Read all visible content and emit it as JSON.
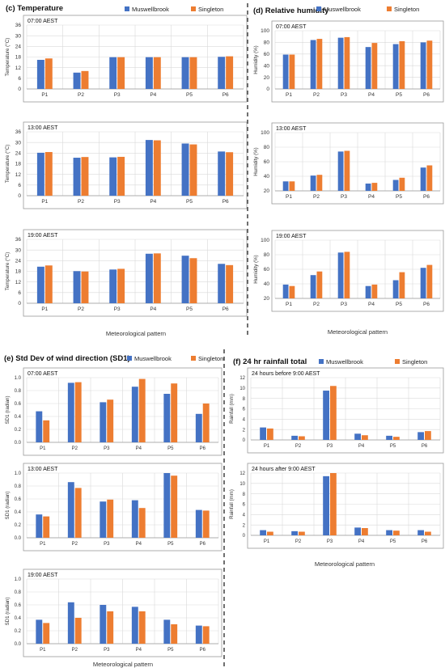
{
  "colors": {
    "muswellbrook": "#4472C4",
    "singleton": "#ED7D31"
  },
  "categories": [
    "P1",
    "P2",
    "P3",
    "P4",
    "P5",
    "P6"
  ],
  "panels": [
    {
      "id": "c",
      "title": "(c) Temperature",
      "legend": [
        "Muswellbrook",
        "Singleton"
      ],
      "xlabel": "Meteorological pattern",
      "charts": [
        {
          "label": "07:00 AEST",
          "ylabel": "Temperature (°C)",
          "ylim": [
            0,
            36
          ],
          "ticks": [
            0,
            6,
            12,
            18,
            24,
            30,
            36
          ],
          "tick_labels": [
            "0",
            "6",
            "12",
            "18",
            "24",
            "30",
            "36"
          ],
          "series": [
            {
              "name": "Muswellbrook",
              "values": [
                16.4,
                9.2,
                17.9,
                17.9,
                17.9,
                18.1
              ]
            },
            {
              "name": "Singleton",
              "values": [
                17.2,
                10.1,
                17.9,
                17.9,
                17.9,
                18.4
              ]
            }
          ]
        },
        {
          "label": "13:00 AEST",
          "ylabel": "Temperature (°C)",
          "ylim": [
            0,
            36
          ],
          "ticks": [
            0,
            6,
            12,
            18,
            24,
            30,
            36
          ],
          "tick_labels": [
            "0",
            "6",
            "12",
            "18",
            "24",
            "30",
            "36"
          ],
          "series": [
            {
              "name": "Muswellbrook",
              "values": [
                24.2,
                21.4,
                21.6,
                31.4,
                29.4,
                24.9
              ]
            },
            {
              "name": "Singleton",
              "values": [
                24.6,
                21.8,
                21.9,
                31.2,
                28.9,
                24.5
              ]
            }
          ]
        },
        {
          "label": "19:00 AEST",
          "ylabel": "Temperature (°C)",
          "ylim": [
            0,
            36
          ],
          "ticks": [
            0,
            6,
            12,
            18,
            24,
            30,
            36
          ],
          "tick_labels": [
            "0",
            "6",
            "12",
            "18",
            "24",
            "30",
            "36"
          ],
          "series": [
            {
              "name": "Muswellbrook",
              "values": [
                20.6,
                18.1,
                19.0,
                27.9,
                26.8,
                22.2
              ]
            },
            {
              "name": "Singleton",
              "values": [
                21.3,
                17.9,
                19.4,
                28.1,
                25.4,
                21.5
              ]
            }
          ]
        }
      ]
    },
    {
      "id": "d",
      "title": "(d) Relative humidity",
      "legend": [
        "Muswellbrook",
        "Singleton"
      ],
      "xlabel": "Meteorological pattern",
      "charts": [
        {
          "label": "07:00 AEST",
          "ylabel": "Humidity (%)",
          "ylim": [
            0,
            100
          ],
          "ticks": [
            0,
            20,
            40,
            60,
            80,
            100
          ],
          "tick_labels": [
            "0",
            "20",
            "40",
            "60",
            "80",
            "100"
          ],
          "series": [
            {
              "name": "Muswellbrook",
              "values": [
                59,
                84,
                88,
                72,
                77,
                80
              ]
            },
            {
              "name": "Singleton",
              "values": [
                59,
                86,
                89,
                79,
                82,
                83
              ]
            }
          ]
        },
        {
          "label": "13:00 AEST",
          "ylabel": "Humidity (%)",
          "ylim": [
            20,
            100
          ],
          "ticks": [
            20,
            40,
            60,
            80,
            100
          ],
          "tick_labels": [
            "20",
            "40",
            "60",
            "80",
            "100"
          ],
          "series": [
            {
              "name": "Muswellbrook",
              "values": [
                33,
                41,
                74,
                30,
                35,
                52
              ]
            },
            {
              "name": "Singleton",
              "values": [
                33,
                42,
                75,
                31,
                38,
                55
              ]
            }
          ]
        },
        {
          "label": "19:00 AEST",
          "ylabel": "Humidity (%)",
          "ylim": [
            20,
            100
          ],
          "ticks": [
            20,
            40,
            60,
            80,
            100
          ],
          "tick_labels": [
            "20",
            "40",
            "60",
            "80",
            "100"
          ],
          "series": [
            {
              "name": "Muswellbrook",
              "values": [
                39,
                52,
                83,
                37,
                45,
                62
              ]
            },
            {
              "name": "Singleton",
              "values": [
                37,
                57,
                84,
                39,
                56,
                66
              ]
            }
          ]
        }
      ]
    },
    {
      "id": "e",
      "title": "(e) Std Dev of wind direction (SD1)",
      "legend": [
        "Muswellbrook",
        "Singleton"
      ],
      "xlabel": "Meteorological pattern",
      "charts": [
        {
          "label": "07:00 AEST",
          "ylabel": "SD1 (radian)",
          "ylim": [
            0,
            1.0
          ],
          "ticks": [
            0,
            0.2,
            0.4,
            0.6,
            0.8,
            1.0
          ],
          "tick_labels": [
            "0.0",
            "0.2",
            "0.4",
            "0.6",
            "0.8",
            "1.0"
          ],
          "series": [
            {
              "name": "Muswellbrook",
              "values": [
                0.48,
                0.92,
                0.62,
                0.86,
                0.75,
                0.44
              ]
            },
            {
              "name": "Singleton",
              "values": [
                0.34,
                0.93,
                0.66,
                0.98,
                0.91,
                0.6
              ]
            }
          ]
        },
        {
          "label": "13:00 AEST",
          "ylabel": "SD1 (radian)",
          "ylim": [
            0,
            1.0
          ],
          "ticks": [
            0,
            0.2,
            0.4,
            0.6,
            0.8,
            1.0
          ],
          "tick_labels": [
            "0.0",
            "0.2",
            "0.4",
            "0.6",
            "0.8",
            "1.0"
          ],
          "series": [
            {
              "name": "Muswellbrook",
              "values": [
                0.36,
                0.86,
                0.56,
                0.58,
                1.0,
                0.43
              ]
            },
            {
              "name": "Singleton",
              "values": [
                0.33,
                0.77,
                0.59,
                0.46,
                0.96,
                0.42
              ]
            }
          ]
        },
        {
          "label": "19:00 AEST",
          "ylabel": "SD1 (radian)",
          "ylim": [
            0,
            1.0
          ],
          "ticks": [
            0,
            0.2,
            0.4,
            0.6,
            0.8,
            1.0
          ],
          "tick_labels": [
            "0.0",
            "0.2",
            "0.4",
            "0.6",
            "0.8",
            "1.0"
          ],
          "series": [
            {
              "name": "Muswellbrook",
              "values": [
                0.37,
                0.64,
                0.6,
                0.57,
                0.37,
                0.28
              ]
            },
            {
              "name": "Singleton",
              "values": [
                0.32,
                0.4,
                0.5,
                0.5,
                0.3,
                0.27
              ]
            }
          ]
        }
      ]
    },
    {
      "id": "f",
      "title": "(f) 24 hr rainfall  total",
      "legend": [
        "Muswellbrook",
        "Singleton"
      ],
      "xlabel": "Meteorological pattern",
      "charts": [
        {
          "label": "24 hours before 9:00 AEST",
          "ylabel": "Rainfall (mm)",
          "ylim": [
            0,
            12
          ],
          "ticks": [
            0,
            2,
            4,
            6,
            8,
            10,
            12
          ],
          "tick_labels": [
            "0",
            "2",
            "4",
            "6",
            "8",
            "10",
            "12"
          ],
          "series": [
            {
              "name": "Muswellbrook",
              "values": [
                2.4,
                0.8,
                9.5,
                1.2,
                0.8,
                1.5
              ]
            },
            {
              "name": "Singleton",
              "values": [
                2.2,
                0.7,
                10.4,
                0.9,
                0.6,
                1.7
              ]
            }
          ]
        },
        {
          "label": "24 hours after 9:00 AEST",
          "ylabel": "Rainfall (mm)",
          "ylim": [
            0,
            12
          ],
          "ticks": [
            0,
            2,
            4,
            6,
            8,
            10,
            12
          ],
          "tick_labels": [
            "0",
            "2",
            "4",
            "6",
            "8",
            "10",
            "12"
          ],
          "series": [
            {
              "name": "Muswellbrook",
              "values": [
                1.0,
                0.8,
                11.4,
                1.5,
                1.0,
                1.0
              ]
            },
            {
              "name": "Singleton",
              "values": [
                0.7,
                0.7,
                12.0,
                1.4,
                0.9,
                0.7
              ]
            }
          ]
        }
      ]
    }
  ],
  "chart_data": [
    {
      "type": "bar",
      "title": "(c) Temperature",
      "subtitle": "07:00 AEST",
      "categories": [
        "P1",
        "P2",
        "P3",
        "P4",
        "P5",
        "P6"
      ],
      "xlabel": "",
      "ylabel": "Temperature (°C)",
      "ylim": [
        0,
        36
      ],
      "series": [
        {
          "name": "Muswellbrook",
          "values": [
            16.4,
            9.2,
            17.9,
            17.9,
            17.9,
            18.1
          ]
        },
        {
          "name": "Singleton",
          "values": [
            17.2,
            10.1,
            17.9,
            17.9,
            17.9,
            18.4
          ]
        }
      ]
    },
    {
      "type": "bar",
      "title": "(c) Temperature",
      "subtitle": "13:00 AEST",
      "categories": [
        "P1",
        "P2",
        "P3",
        "P4",
        "P5",
        "P6"
      ],
      "xlabel": "",
      "ylabel": "Temperature (°C)",
      "ylim": [
        0,
        36
      ],
      "series": [
        {
          "name": "Muswellbrook",
          "values": [
            24.2,
            21.4,
            21.6,
            31.4,
            29.4,
            24.9
          ]
        },
        {
          "name": "Singleton",
          "values": [
            24.6,
            21.8,
            21.9,
            31.2,
            28.9,
            24.5
          ]
        }
      ]
    },
    {
      "type": "bar",
      "title": "(c) Temperature",
      "subtitle": "19:00 AEST",
      "categories": [
        "P1",
        "P2",
        "P3",
        "P4",
        "P5",
        "P6"
      ],
      "xlabel": "Meteorological pattern",
      "ylabel": "Temperature (°C)",
      "ylim": [
        0,
        36
      ],
      "series": [
        {
          "name": "Muswellbrook",
          "values": [
            20.6,
            18.1,
            19.0,
            27.9,
            26.8,
            22.2
          ]
        },
        {
          "name": "Singleton",
          "values": [
            21.3,
            17.9,
            19.4,
            28.1,
            25.4,
            21.5
          ]
        }
      ]
    },
    {
      "type": "bar",
      "title": "(d) Relative humidity",
      "subtitle": "07:00 AEST",
      "categories": [
        "P1",
        "P2",
        "P3",
        "P4",
        "P5",
        "P6"
      ],
      "xlabel": "",
      "ylabel": "Humidity (%)",
      "ylim": [
        0,
        100
      ],
      "series": [
        {
          "name": "Muswellbrook",
          "values": [
            59,
            84,
            88,
            72,
            77,
            80
          ]
        },
        {
          "name": "Singleton",
          "values": [
            59,
            86,
            89,
            79,
            82,
            83
          ]
        }
      ]
    },
    {
      "type": "bar",
      "title": "(d) Relative humidity",
      "subtitle": "13:00 AEST",
      "categories": [
        "P1",
        "P2",
        "P3",
        "P4",
        "P5",
        "P6"
      ],
      "xlabel": "",
      "ylabel": "Humidity (%)",
      "ylim": [
        20,
        100
      ],
      "series": [
        {
          "name": "Muswellbrook",
          "values": [
            33,
            41,
            74,
            30,
            35,
            52
          ]
        },
        {
          "name": "Singleton",
          "values": [
            33,
            42,
            75,
            31,
            38,
            55
          ]
        }
      ]
    },
    {
      "type": "bar",
      "title": "(d) Relative humidity",
      "subtitle": "19:00 AEST",
      "categories": [
        "P1",
        "P2",
        "P3",
        "P4",
        "P5",
        "P6"
      ],
      "xlabel": "Meteorological pattern",
      "ylabel": "Humidity (%)",
      "ylim": [
        20,
        100
      ],
      "series": [
        {
          "name": "Muswellbrook",
          "values": [
            39,
            52,
            83,
            37,
            45,
            62
          ]
        },
        {
          "name": "Singleton",
          "values": [
            37,
            57,
            84,
            39,
            56,
            66
          ]
        }
      ]
    },
    {
      "type": "bar",
      "title": "(e) Std Dev of wind direction (SD1)",
      "subtitle": "07:00 AEST",
      "categories": [
        "P1",
        "P2",
        "P3",
        "P4",
        "P5",
        "P6"
      ],
      "xlabel": "",
      "ylabel": "SD1 (radian)",
      "ylim": [
        0,
        1.0
      ],
      "series": [
        {
          "name": "Muswellbrook",
          "values": [
            0.48,
            0.92,
            0.62,
            0.86,
            0.75,
            0.44
          ]
        },
        {
          "name": "Singleton",
          "values": [
            0.34,
            0.93,
            0.66,
            0.98,
            0.91,
            0.6
          ]
        }
      ]
    },
    {
      "type": "bar",
      "title": "(e) Std Dev of wind direction (SD1)",
      "subtitle": "13:00 AEST",
      "categories": [
        "P1",
        "P2",
        "P3",
        "P4",
        "P5",
        "P6"
      ],
      "xlabel": "",
      "ylabel": "SD1 (radian)",
      "ylim": [
        0,
        1.0
      ],
      "series": [
        {
          "name": "Muswellbrook",
          "values": [
            0.36,
            0.86,
            0.56,
            0.58,
            1.0,
            0.43
          ]
        },
        {
          "name": "Singleton",
          "values": [
            0.33,
            0.77,
            0.59,
            0.46,
            0.96,
            0.42
          ]
        }
      ]
    },
    {
      "type": "bar",
      "title": "(e) Std Dev of wind direction (SD1)",
      "subtitle": "19:00 AEST",
      "categories": [
        "P1",
        "P2",
        "P3",
        "P4",
        "P5",
        "P6"
      ],
      "xlabel": "Meteorological pattern",
      "ylabel": "SD1 (radian)",
      "ylim": [
        0,
        1.0
      ],
      "series": [
        {
          "name": "Muswellbrook",
          "values": [
            0.37,
            0.64,
            0.6,
            0.57,
            0.37,
            0.28
          ]
        },
        {
          "name": "Singleton",
          "values": [
            0.32,
            0.4,
            0.5,
            0.5,
            0.3,
            0.27
          ]
        }
      ]
    },
    {
      "type": "bar",
      "title": "(f) 24 hr rainfall  total",
      "subtitle": "24 hours before 9:00 AEST",
      "categories": [
        "P1",
        "P2",
        "P3",
        "P4",
        "P5",
        "P6"
      ],
      "xlabel": "",
      "ylabel": "Rainfall (mm)",
      "ylim": [
        0,
        12
      ],
      "series": [
        {
          "name": "Muswellbrook",
          "values": [
            2.4,
            0.8,
            9.5,
            1.2,
            0.8,
            1.5
          ]
        },
        {
          "name": "Singleton",
          "values": [
            2.2,
            0.7,
            10.4,
            0.9,
            0.6,
            1.7
          ]
        }
      ]
    },
    {
      "type": "bar",
      "title": "(f) 24 hr rainfall  total",
      "subtitle": "24 hours after 9:00 AEST",
      "categories": [
        "P1",
        "P2",
        "P3",
        "P4",
        "P5",
        "P6"
      ],
      "xlabel": "Meteorological pattern",
      "ylabel": "Rainfall (mm)",
      "ylim": [
        0,
        12
      ],
      "series": [
        {
          "name": "Muswellbrook",
          "values": [
            1.0,
            0.8,
            11.4,
            1.5,
            1.0,
            1.0
          ]
        },
        {
          "name": "Singleton",
          "values": [
            0.7,
            0.7,
            12.0,
            1.4,
            0.9,
            0.7
          ]
        }
      ]
    }
  ]
}
